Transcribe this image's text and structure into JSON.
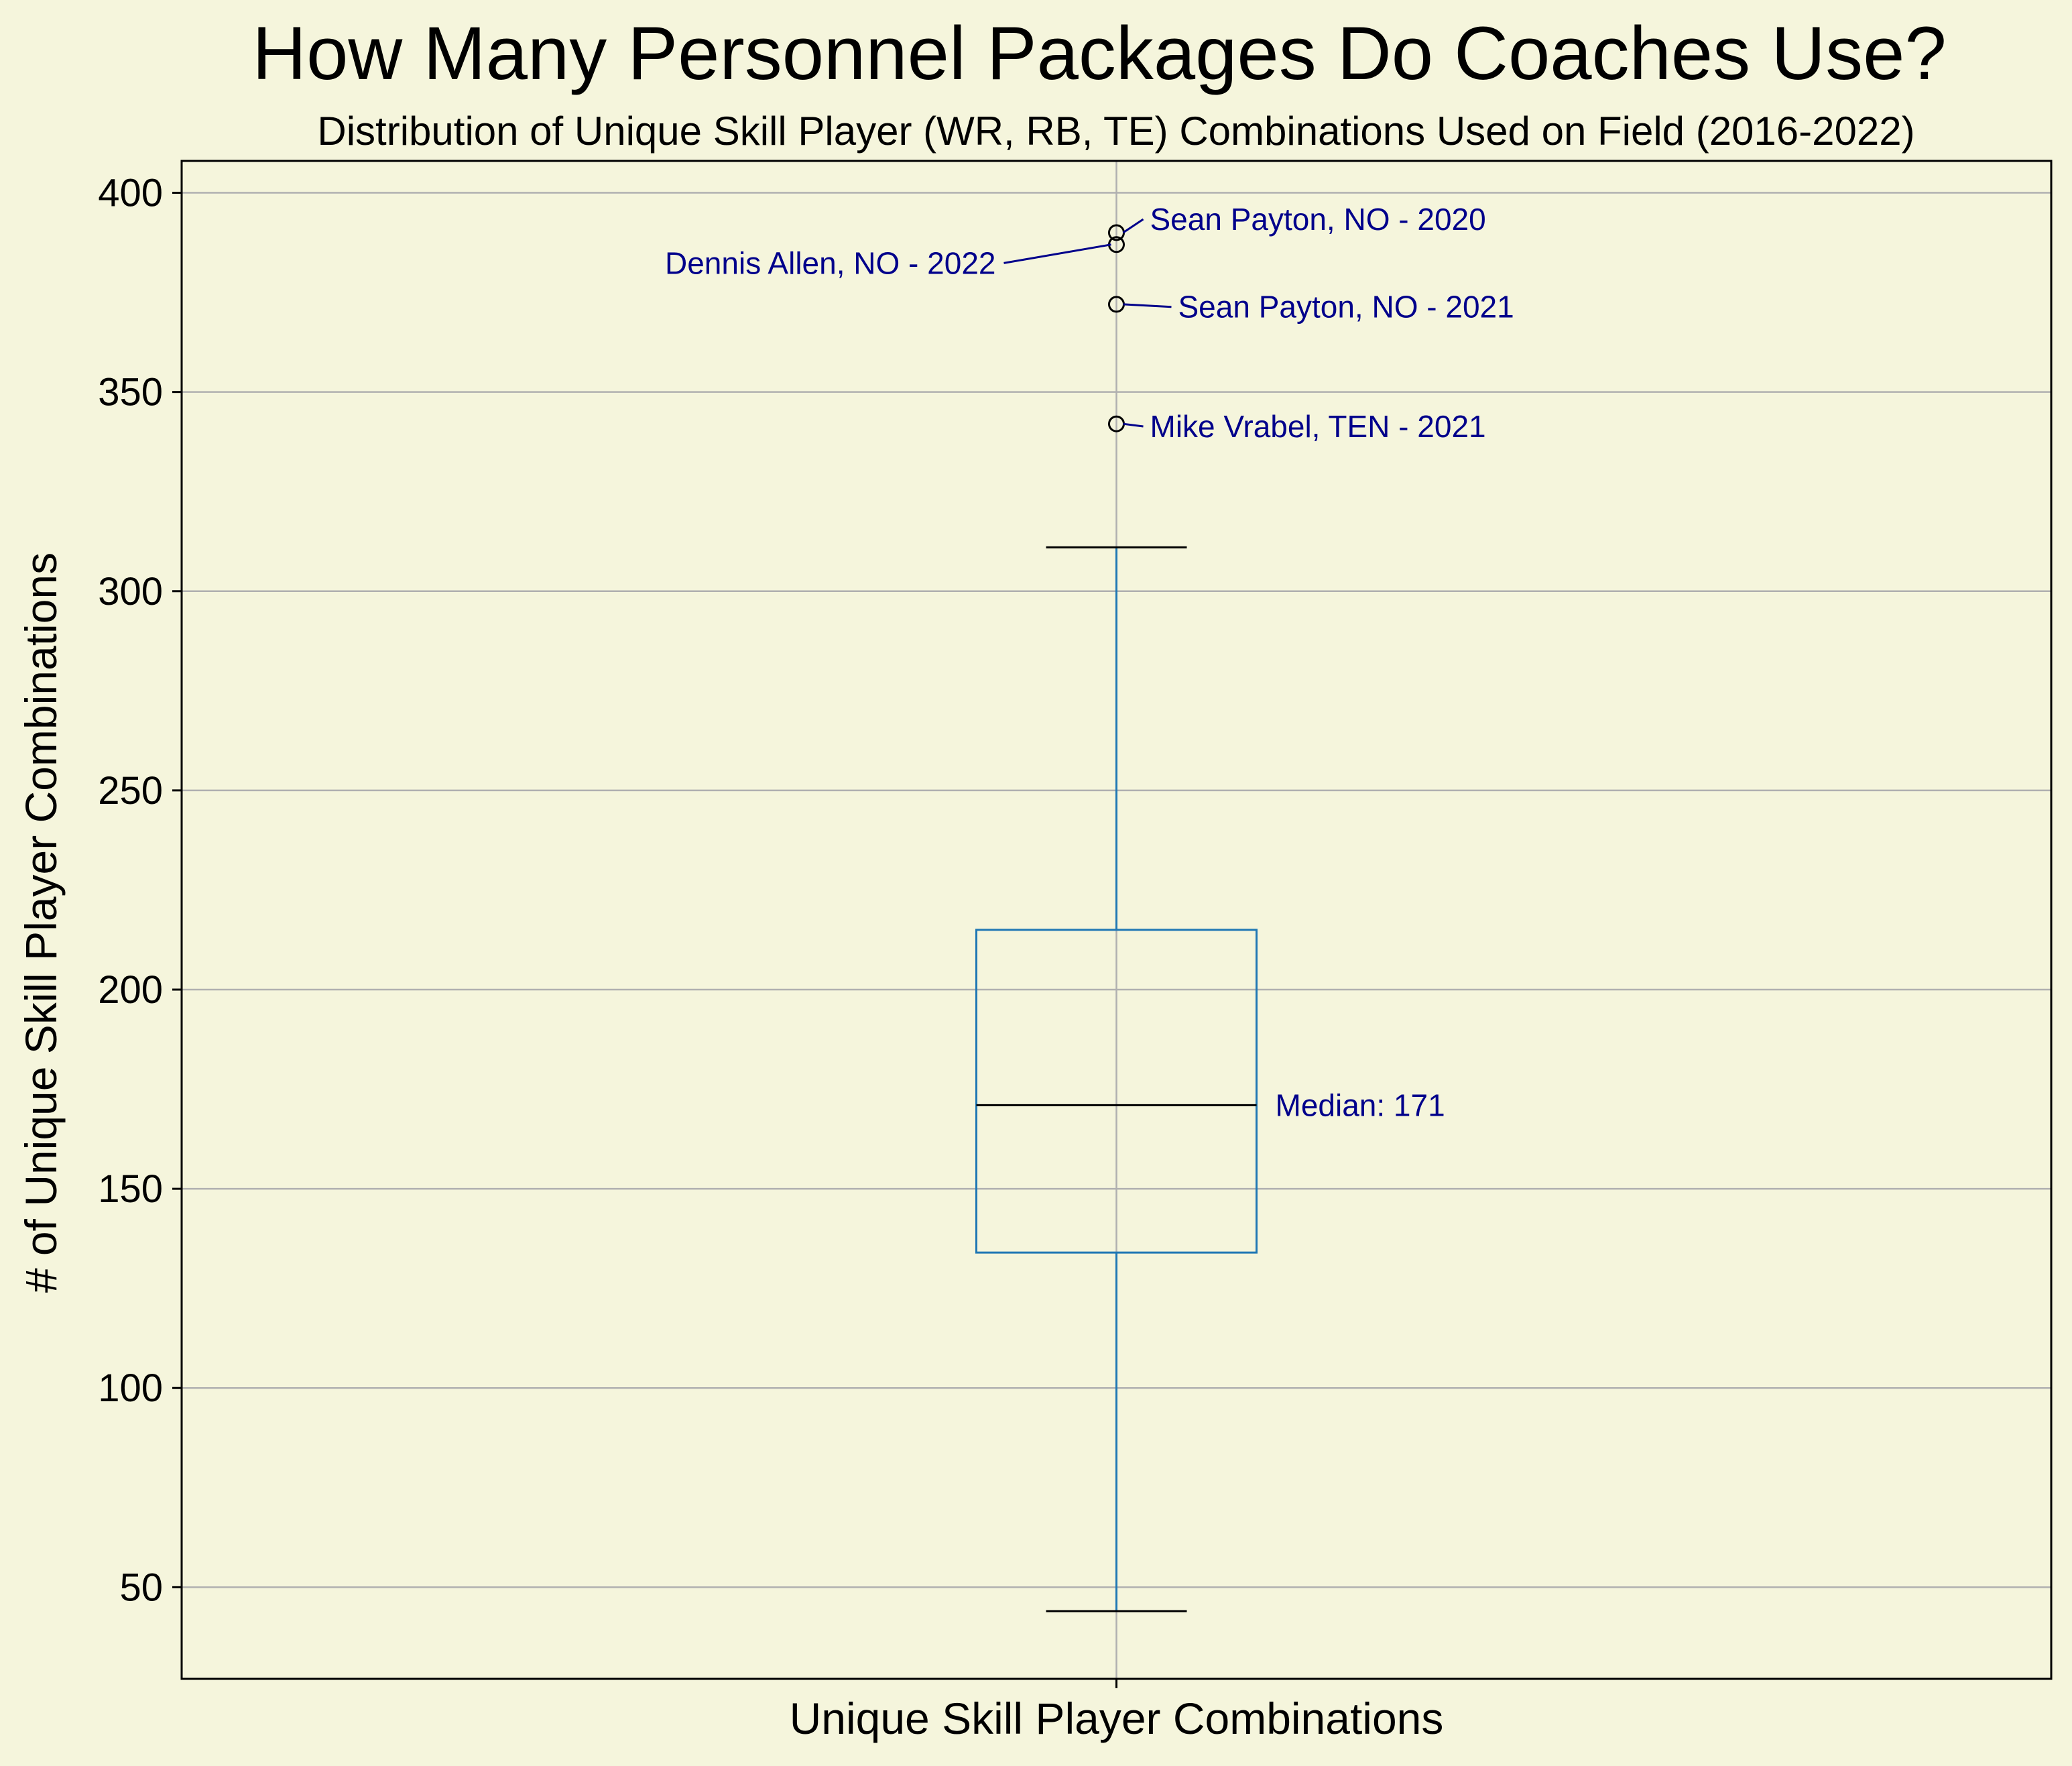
{
  "chart_data": {
    "type": "box",
    "title": "How Many Personnel Packages Do Coaches Use?",
    "subtitle": "Distribution of Unique Skill Player (WR, RB, TE) Combinations Used on Field (2016-2022)",
    "xlabel": "Unique Skill Player Combinations",
    "ylabel": "# of Unique Skill Player Combinations",
    "categories": [
      "Unique Skill Player Combinations"
    ],
    "ylim": [
      27,
      408
    ],
    "yticks": [
      50,
      100,
      150,
      200,
      250,
      300,
      350,
      400
    ],
    "grid": true,
    "box": {
      "whisker_low": 44,
      "q1": 134,
      "median": 171,
      "q3": 215,
      "whisker_high": 311
    },
    "median_label": "Median: 171",
    "outliers": [
      {
        "value": 390,
        "label": "Sean Payton, NO - 2020",
        "side": "right",
        "label_value": 391
      },
      {
        "value": 387,
        "label": "Dennis Allen, NO - 2022",
        "side": "left",
        "label_value": 380
      },
      {
        "value": 372,
        "label": "Sean Payton, NO - 2021",
        "side": "right",
        "label_value": 369
      },
      {
        "value": 342,
        "label": "Mike Vrabel, TEN - 2021",
        "side": "right",
        "label_value": 339
      }
    ],
    "colors": {
      "background": "#f5f5dc",
      "box": "#1f77b4",
      "median": "#000000",
      "caps": "#000000",
      "grid": "#b0b0b0",
      "annotation": "#00008b"
    }
  }
}
